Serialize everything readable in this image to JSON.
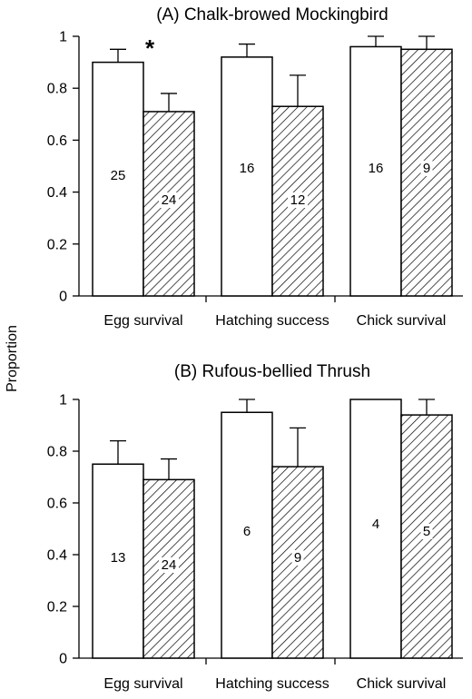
{
  "figure": {
    "ylabel": "Proportion"
  },
  "chart_data": [
    {
      "type": "bar",
      "title": "(A) Chalk-browed Mockingbird",
      "categories": [
        "Egg survival",
        "Hatching success",
        "Chick survival"
      ],
      "ylim": [
        0,
        1
      ],
      "yticks": [
        "0",
        "0.2",
        "0.4",
        "0.6",
        "0.8",
        "1"
      ],
      "series": [
        {
          "pattern": "open",
          "values": [
            0.9,
            0.92,
            0.96
          ],
          "errors": [
            0.05,
            0.05,
            0.04
          ],
          "n_labels": [
            "25",
            "16",
            "16"
          ]
        },
        {
          "pattern": "hatched",
          "values": [
            0.71,
            0.73,
            0.95
          ],
          "errors": [
            0.07,
            0.12,
            0.05
          ],
          "n_labels": [
            "24",
            "12",
            "9"
          ]
        }
      ],
      "annotations": [
        {
          "text": "*",
          "category": 0
        }
      ]
    },
    {
      "type": "bar",
      "title": "(B) Rufous-bellied Thrush",
      "categories": [
        "Egg survival",
        "Hatching success",
        "Chick survival"
      ],
      "ylim": [
        0,
        1
      ],
      "yticks": [
        "0",
        "0.2",
        "0.4",
        "0.6",
        "0.8",
        "1"
      ],
      "series": [
        {
          "pattern": "open",
          "values": [
            0.75,
            0.95,
            1.0
          ],
          "errors": [
            0.09,
            0.05,
            0.0
          ],
          "n_labels": [
            "13",
            "6",
            "4"
          ]
        },
        {
          "pattern": "hatched",
          "values": [
            0.69,
            0.74,
            0.94
          ],
          "errors": [
            0.08,
            0.15,
            0.06
          ],
          "n_labels": [
            "24",
            "9",
            "5"
          ]
        }
      ],
      "annotations": []
    }
  ]
}
